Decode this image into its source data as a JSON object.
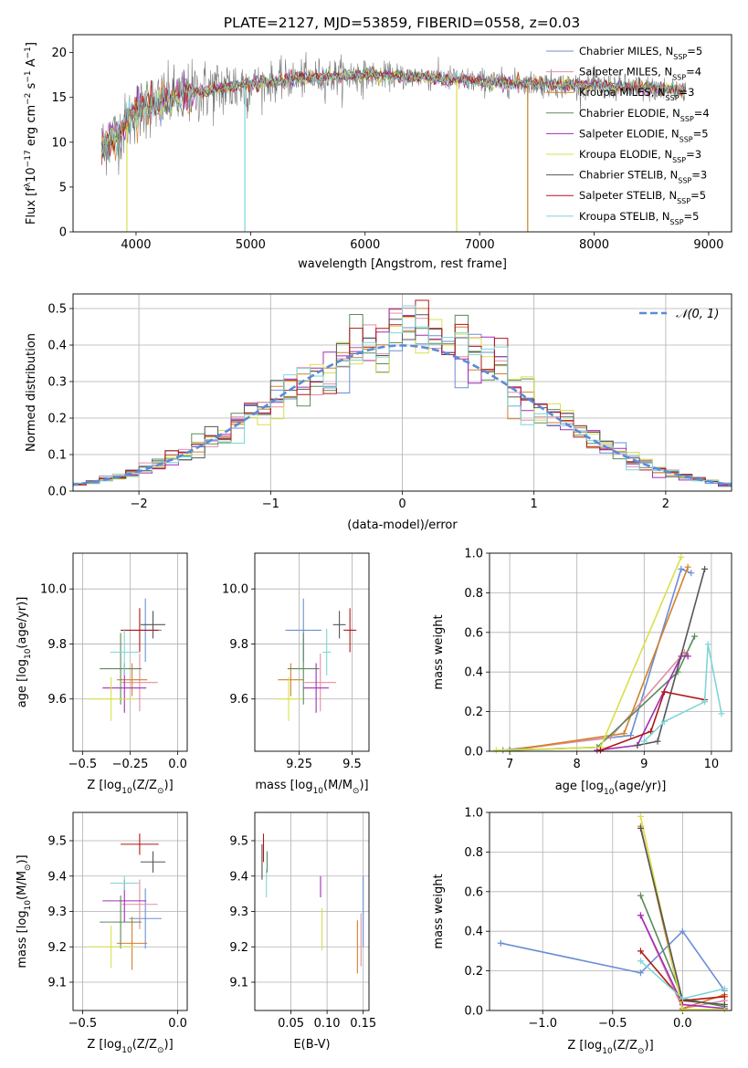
{
  "title": "PLATE=2127, MJD=53859, FIBERID=0558, z=0.03",
  "models": [
    {
      "name": "Chabrier MILES",
      "nssp": "5",
      "color": "#6a8fd4"
    },
    {
      "name": "Salpeter MILES",
      "nssp": "4",
      "color": "#e28fa3"
    },
    {
      "name": "Kroupa MILES",
      "nssp": "3",
      "color": "#d4802a"
    },
    {
      "name": "Chabrier ELODIE",
      "nssp": "4",
      "color": "#5a8a5a"
    },
    {
      "name": "Salpeter ELODIE",
      "nssp": "5",
      "color": "#a32cb8"
    },
    {
      "name": "Kroupa ELODIE",
      "nssp": "3",
      "color": "#d8e04a"
    },
    {
      "name": "Chabrier STELIB",
      "nssp": "3",
      "color": "#555555"
    },
    {
      "name": "Salpeter STELIB",
      "nssp": "5",
      "color": "#b01818"
    },
    {
      "name": "Kroupa STELIB",
      "nssp": "5",
      "color": "#7fd6d6"
    }
  ],
  "nssp_prefix": "N",
  "nssp_sub": "SSP",
  "chart_data": [
    {
      "id": "spectrum",
      "type": "line",
      "xlabel": "wavelength [Angstrom, rest frame]",
      "ylabel_parts": [
        "Flux [f",
        "λ",
        "10",
        "−17",
        " erg cm",
        "−2",
        " s",
        "−1",
        " A",
        "−1",
        "]"
      ],
      "xlim": [
        3450,
        9200
      ],
      "ylim": [
        0,
        22
      ],
      "xticks": [
        4000,
        5000,
        6000,
        7000,
        8000,
        9000
      ],
      "yticks": [
        0,
        5,
        10,
        15,
        20
      ],
      "x_range": [
        3700,
        8800
      ],
      "continuum": [
        [
          3700,
          9.5
        ],
        [
          3850,
          11
        ],
        [
          4000,
          13.5
        ],
        [
          4200,
          14.5
        ],
        [
          4500,
          15.5
        ],
        [
          5000,
          16.5
        ],
        [
          5500,
          17.2
        ],
        [
          6000,
          17.5
        ],
        [
          6500,
          17.3
        ],
        [
          7000,
          16.8
        ],
        [
          7500,
          16.5
        ],
        [
          8000,
          16.3
        ],
        [
          8500,
          16
        ],
        [
          8800,
          15.8
        ]
      ],
      "drops": [
        [
          3920,
          0
        ],
        [
          4950,
          0
        ],
        [
          6800,
          0
        ],
        [
          7420,
          0
        ]
      ]
    },
    {
      "id": "residuals",
      "type": "histogram",
      "xlabel": "(data-model)/error",
      "ylabel": "Normed distribution",
      "xlim": [
        -2.5,
        2.5
      ],
      "ylim": [
        0,
        0.54
      ],
      "xticks": [
        -2,
        -1,
        0,
        1,
        2
      ],
      "yticks": [
        0,
        0.1,
        0.2,
        0.3,
        0.4,
        0.5
      ],
      "legend": "𝒩(0, 1)",
      "bin_width": 0.1
    },
    {
      "id": "z-age",
      "type": "scatter",
      "xlabel_parts": [
        "Z [log",
        "10",
        "(Z/Z",
        "⊙",
        ")]"
      ],
      "ylabel_parts": [
        "age  [log",
        "10",
        "(age/yr)]"
      ],
      "xlim": [
        -0.55,
        0.05
      ],
      "ylim": [
        9.41,
        10.13
      ],
      "xticks": [
        -0.5,
        -0.25,
        0.0
      ],
      "yticks": [
        9.6,
        9.8,
        10.0
      ],
      "points": [
        [
          -0.17,
          9.85,
          0.17,
          0.23
        ],
        [
          -0.2,
          9.66,
          0.19,
          0.21
        ],
        [
          -0.24,
          9.67,
          0.16,
          0.12
        ],
        [
          -0.3,
          9.71,
          0.22,
          0.26
        ],
        [
          -0.28,
          9.64,
          0.23,
          0.18
        ],
        [
          -0.35,
          9.6,
          0.25,
          0.16
        ],
        [
          -0.13,
          9.87,
          0.13,
          0.1
        ],
        [
          -0.2,
          9.85,
          0.2,
          0.16
        ],
        [
          -0.28,
          9.77,
          0.15,
          0.17
        ]
      ]
    },
    {
      "id": "mass-age",
      "type": "scatter",
      "xlabel_parts": [
        "mass [log",
        "10",
        "(M/M",
        "⊙",
        ")]"
      ],
      "ylabel_parts": [],
      "xlim": [
        9.04,
        9.58
      ],
      "ylim": [
        9.41,
        10.13
      ],
      "xticks": [
        9.25,
        9.5
      ],
      "yticks": [
        9.6,
        9.8,
        10.0
      ],
      "points": [
        [
          9.27,
          9.85,
          0.17,
          0.23
        ],
        [
          9.35,
          9.66,
          0.15,
          0.21
        ],
        [
          9.21,
          9.67,
          0.12,
          0.12
        ],
        [
          9.27,
          9.71,
          0.15,
          0.26
        ],
        [
          9.33,
          9.64,
          0.12,
          0.18
        ],
        [
          9.2,
          9.6,
          0.12,
          0.16
        ],
        [
          9.44,
          9.87,
          0.06,
          0.1
        ],
        [
          9.49,
          9.85,
          0.06,
          0.16
        ],
        [
          9.38,
          9.77,
          0.04,
          0.17
        ]
      ]
    },
    {
      "id": "age-weight",
      "type": "line",
      "xlabel_parts": [
        "age  [log",
        "10",
        "(age/yr)]"
      ],
      "ylabel": "mass weight",
      "xlim": [
        6.7,
        10.3
      ],
      "ylim": [
        0,
        1.0
      ],
      "xticks": [
        7,
        8,
        9,
        10
      ],
      "yticks": [
        0,
        0.2,
        0.4,
        0.6,
        0.8,
        1.0
      ],
      "series": [
        [
          [
            6.9,
            0.005
          ],
          [
            8.8,
            0.08
          ],
          [
            9.55,
            0.92
          ],
          [
            9.7,
            0.9
          ]
        ],
        [
          [
            7.0,
            0.005
          ],
          [
            8.5,
            0.07
          ],
          [
            9.6,
            0.5
          ],
          [
            9.65,
            0.48
          ]
        ],
        [
          [
            7.0,
            0.005
          ],
          [
            8.7,
            0.09
          ],
          [
            9.65,
            0.93
          ]
        ],
        [
          [
            7.0,
            0.005
          ],
          [
            8.3,
            0.02
          ],
          [
            9.5,
            0.4
          ],
          [
            9.75,
            0.58
          ]
        ],
        [
          [
            8.3,
            0.005
          ],
          [
            8.9,
            0.03
          ],
          [
            9.55,
            0.48
          ],
          [
            9.65,
            0.48
          ]
        ],
        [
          [
            6.8,
            0.005
          ],
          [
            8.35,
            0.02
          ],
          [
            9.55,
            0.98
          ]
        ],
        [
          [
            8.9,
            0.03
          ],
          [
            9.2,
            0.05
          ],
          [
            9.9,
            0.92
          ]
        ],
        [
          [
            8.35,
            0.005
          ],
          [
            9.1,
            0.1
          ],
          [
            9.3,
            0.3
          ],
          [
            9.9,
            0.26
          ]
        ],
        [
          [
            9.0,
            0.05
          ],
          [
            9.3,
            0.15
          ],
          [
            9.9,
            0.25
          ],
          [
            9.95,
            0.54
          ],
          [
            10.15,
            0.19
          ]
        ]
      ]
    },
    {
      "id": "z-mass",
      "type": "scatter",
      "xlabel_parts": [
        "Z [log",
        "10",
        "(Z/Z",
        "⊙",
        ")]"
      ],
      "ylabel_parts": [
        "mass [log",
        "10",
        "(M/M",
        "⊙",
        ")]"
      ],
      "xlim": [
        -0.55,
        0.05
      ],
      "ylim": [
        9.02,
        9.58
      ],
      "xticks": [
        -0.5,
        0.0
      ],
      "yticks": [
        9.1,
        9.2,
        9.3,
        9.4,
        9.5
      ],
      "points": [
        [
          -0.17,
          9.28,
          0.17,
          0.17
        ],
        [
          -0.2,
          9.32,
          0.19,
          0.14
        ],
        [
          -0.24,
          9.21,
          0.16,
          0.15
        ],
        [
          -0.3,
          9.27,
          0.22,
          0.15
        ],
        [
          -0.28,
          9.33,
          0.23,
          0.12
        ],
        [
          -0.35,
          9.2,
          0.25,
          0.12
        ],
        [
          -0.13,
          9.44,
          0.13,
          0.06
        ],
        [
          -0.2,
          9.49,
          0.2,
          0.06
        ],
        [
          -0.28,
          9.38,
          0.15,
          0.04
        ]
      ]
    },
    {
      "id": "ebv-mass",
      "type": "scatter",
      "xlabel": "E(B-V)",
      "ylabel_parts": [],
      "xlim": [
        0.0,
        0.158
      ],
      "ylim": [
        9.02,
        9.58
      ],
      "xticks": [
        0.05,
        0.1,
        0.15
      ],
      "yticks": [
        9.1,
        9.2,
        9.3,
        9.4,
        9.5
      ],
      "points": [
        [
          0.15,
          9.3,
          0,
          0.2
        ],
        [
          0.147,
          9.22,
          0,
          0.15
        ],
        [
          0.142,
          9.2,
          0,
          0.15
        ],
        [
          0.017,
          9.44,
          0,
          0.06
        ],
        [
          0.091,
          9.37,
          0,
          0.06
        ],
        [
          0.093,
          9.25,
          0,
          0.12
        ],
        [
          0.01,
          9.44,
          0,
          0.1
        ],
        [
          0.012,
          9.48,
          0,
          0.08
        ],
        [
          0.016,
          9.38,
          0,
          0.08
        ]
      ]
    },
    {
      "id": "z-weight",
      "type": "line",
      "xlabel_parts": [
        "Z [log",
        "10",
        "(Z/Z",
        "⊙",
        ")]"
      ],
      "ylabel": "mass weight",
      "xlim": [
        -1.38,
        0.35
      ],
      "ylim": [
        0,
        1.0
      ],
      "xticks": [
        -1.0,
        -0.5,
        0.0
      ],
      "yticks": [
        0,
        0.2,
        0.4,
        0.6,
        0.8,
        1.0
      ],
      "series": [
        [
          [
            -1.3,
            0.34
          ],
          [
            -0.3,
            0.19
          ],
          [
            0.0,
            0.4
          ],
          [
            0.3,
            0.1
          ]
        ],
        [
          [
            -0.3,
            0.48
          ],
          [
            0.0,
            0.01
          ],
          [
            0.3,
            0.05
          ]
        ],
        [
          [
            -0.3,
            0.93
          ],
          [
            0.0,
            0.01
          ],
          [
            0.3,
            0.08
          ]
        ],
        [
          [
            -0.3,
            0.58
          ],
          [
            0.0,
            0.06
          ],
          [
            0.3,
            0.02
          ]
        ],
        [
          [
            -0.3,
            0.48
          ],
          [
            0.0,
            0.03
          ],
          [
            0.3,
            0.01
          ]
        ],
        [
          [
            -0.3,
            0.98
          ],
          [
            0.0,
            0.005
          ],
          [
            0.3,
            0.005
          ]
        ],
        [
          [
            -0.3,
            0.92
          ],
          [
            0.0,
            0.05
          ],
          [
            0.3,
            0.03
          ]
        ],
        [
          [
            -0.3,
            0.3
          ],
          [
            0.0,
            0.05
          ],
          [
            0.3,
            0.07
          ]
        ],
        [
          [
            -0.3,
            0.25
          ],
          [
            0.0,
            0.06
          ],
          [
            0.3,
            0.11
          ]
        ]
      ]
    }
  ]
}
